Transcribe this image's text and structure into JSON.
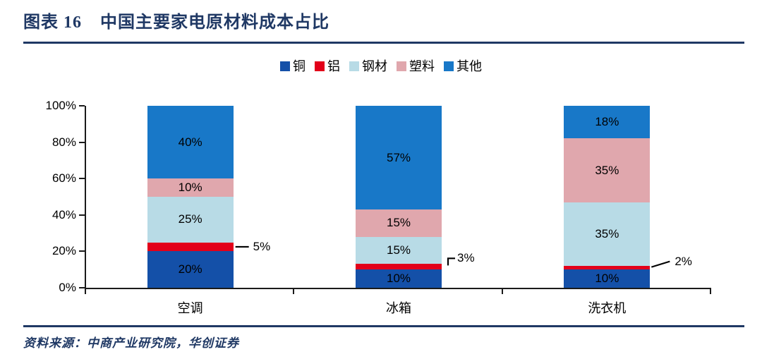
{
  "header": {
    "figure_label": "图表 16",
    "title": "中国主要家电原材料成本占比"
  },
  "footer": {
    "source": "资料来源：中商产业研究院，华创证券"
  },
  "colors": {
    "accent_navy": "#1F3864",
    "axis": "#1a1a1a"
  },
  "chart_data": {
    "type": "stacked-bar",
    "title": "中国主要家电原材料成本占比",
    "categories": [
      "空调",
      "冰箱",
      "洗衣机"
    ],
    "series": [
      {
        "name": "铜",
        "color": "#1450A8",
        "values": [
          20,
          10,
          10
        ],
        "label_style": "inside"
      },
      {
        "name": "铝",
        "color": "#E2001A",
        "values": [
          5,
          3,
          2
        ],
        "label_style": "callout"
      },
      {
        "name": "钢材",
        "color": "#B8DBE6",
        "values": [
          25,
          15,
          35
        ],
        "label_style": "inside"
      },
      {
        "name": "塑料",
        "color": "#E0A7AD",
        "values": [
          10,
          15,
          35
        ],
        "label_style": "inside"
      },
      {
        "name": "其他",
        "color": "#1878C8",
        "values": [
          40,
          57,
          18
        ],
        "label_style": "inside"
      }
    ],
    "callout_labels": [
      "5%",
      "3%",
      "2%"
    ],
    "y_ticks": [
      "0%",
      "20%",
      "40%",
      "60%",
      "80%",
      "100%"
    ],
    "ylim": [
      0,
      100
    ],
    "value_suffix": "%",
    "grid": false,
    "legend_position": "top"
  }
}
